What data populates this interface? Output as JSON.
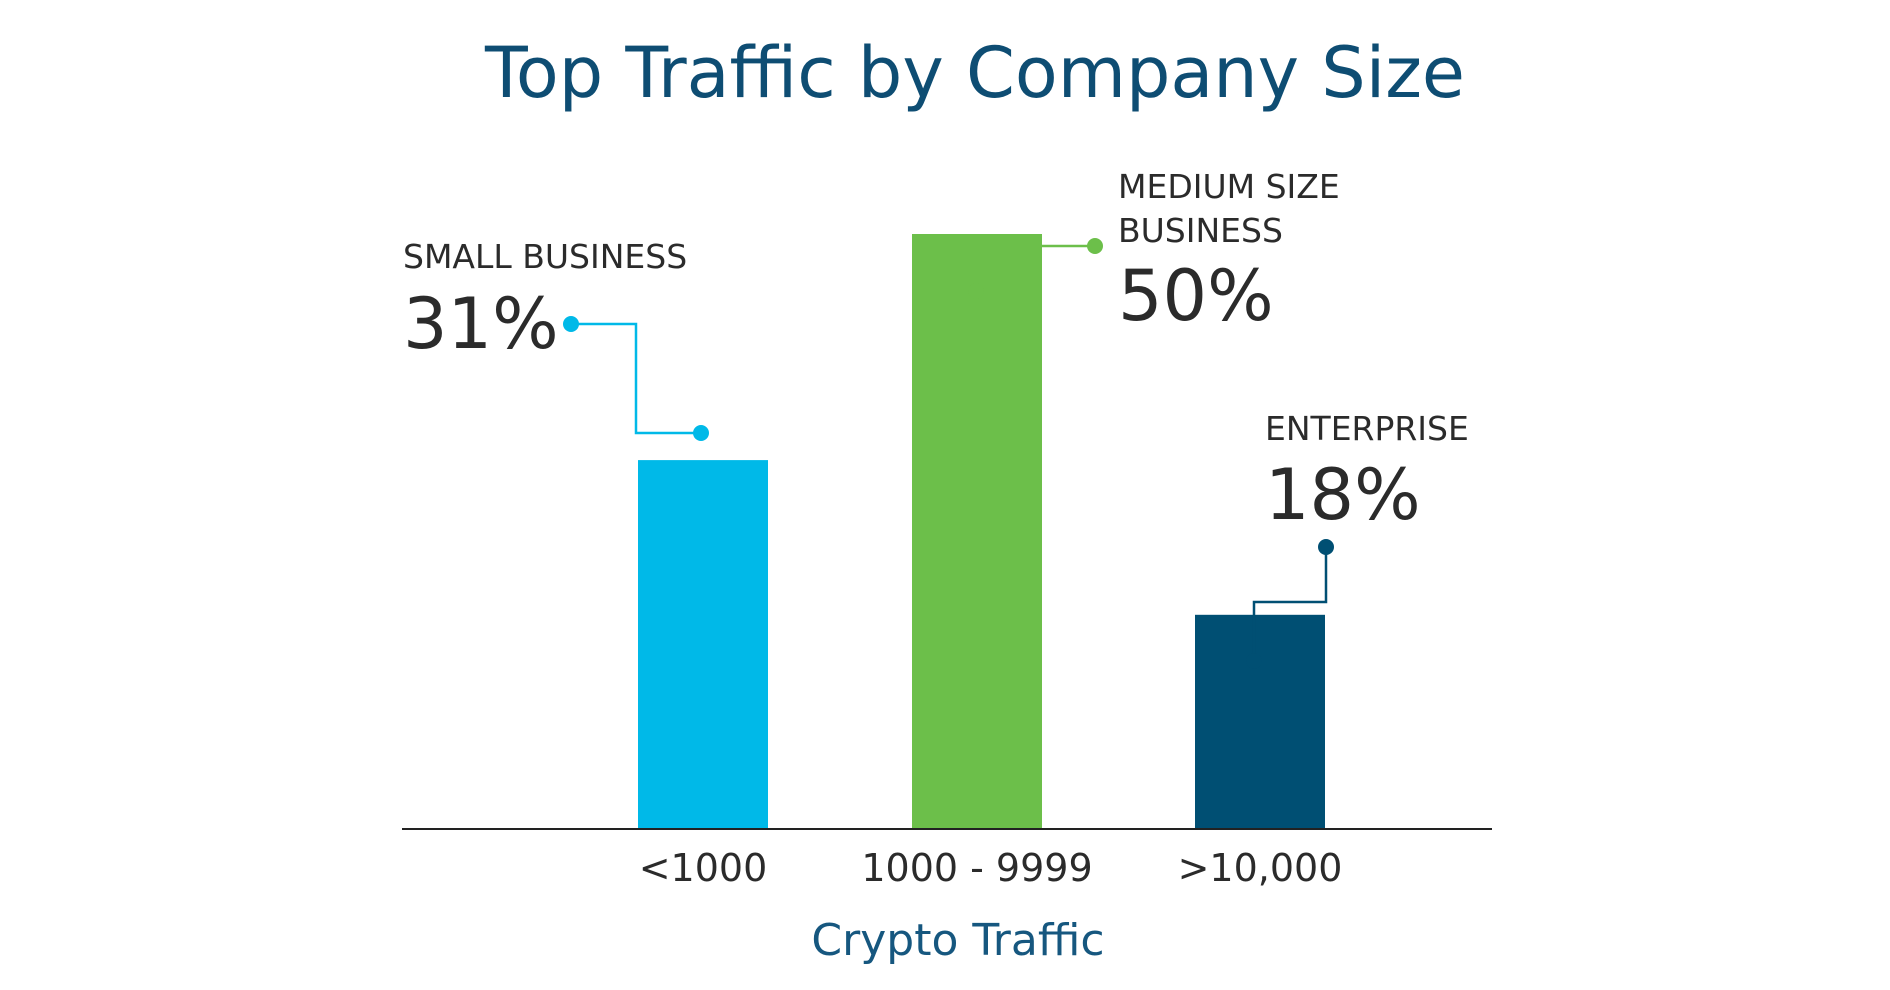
{
  "chart_data": {
    "type": "bar",
    "title": "Top Traffic by Company Size",
    "xlabel": "Crypto Traffic",
    "ylabel": "",
    "ylim": [
      0,
      55
    ],
    "categories": [
      "<1000",
      "1000 - 9999",
      ">10,000"
    ],
    "values": [
      31,
      50,
      18
    ],
    "colors": [
      "#00b9e8",
      "#6cbf4a",
      "#004f73"
    ],
    "annotations": [
      {
        "label_lines": [
          "SMALL BUSINESS"
        ],
        "value_text": "31%",
        "color": "#00b9e8"
      },
      {
        "label_lines": [
          "MEDIUM SIZE",
          "BUSINESS"
        ],
        "value_text": "50%",
        "color": "#6cbf4a"
      },
      {
        "label_lines": [
          "ENTERPRISE"
        ],
        "value_text": "18%",
        "color": "#004f73"
      }
    ],
    "grid": false,
    "legend": "none"
  }
}
